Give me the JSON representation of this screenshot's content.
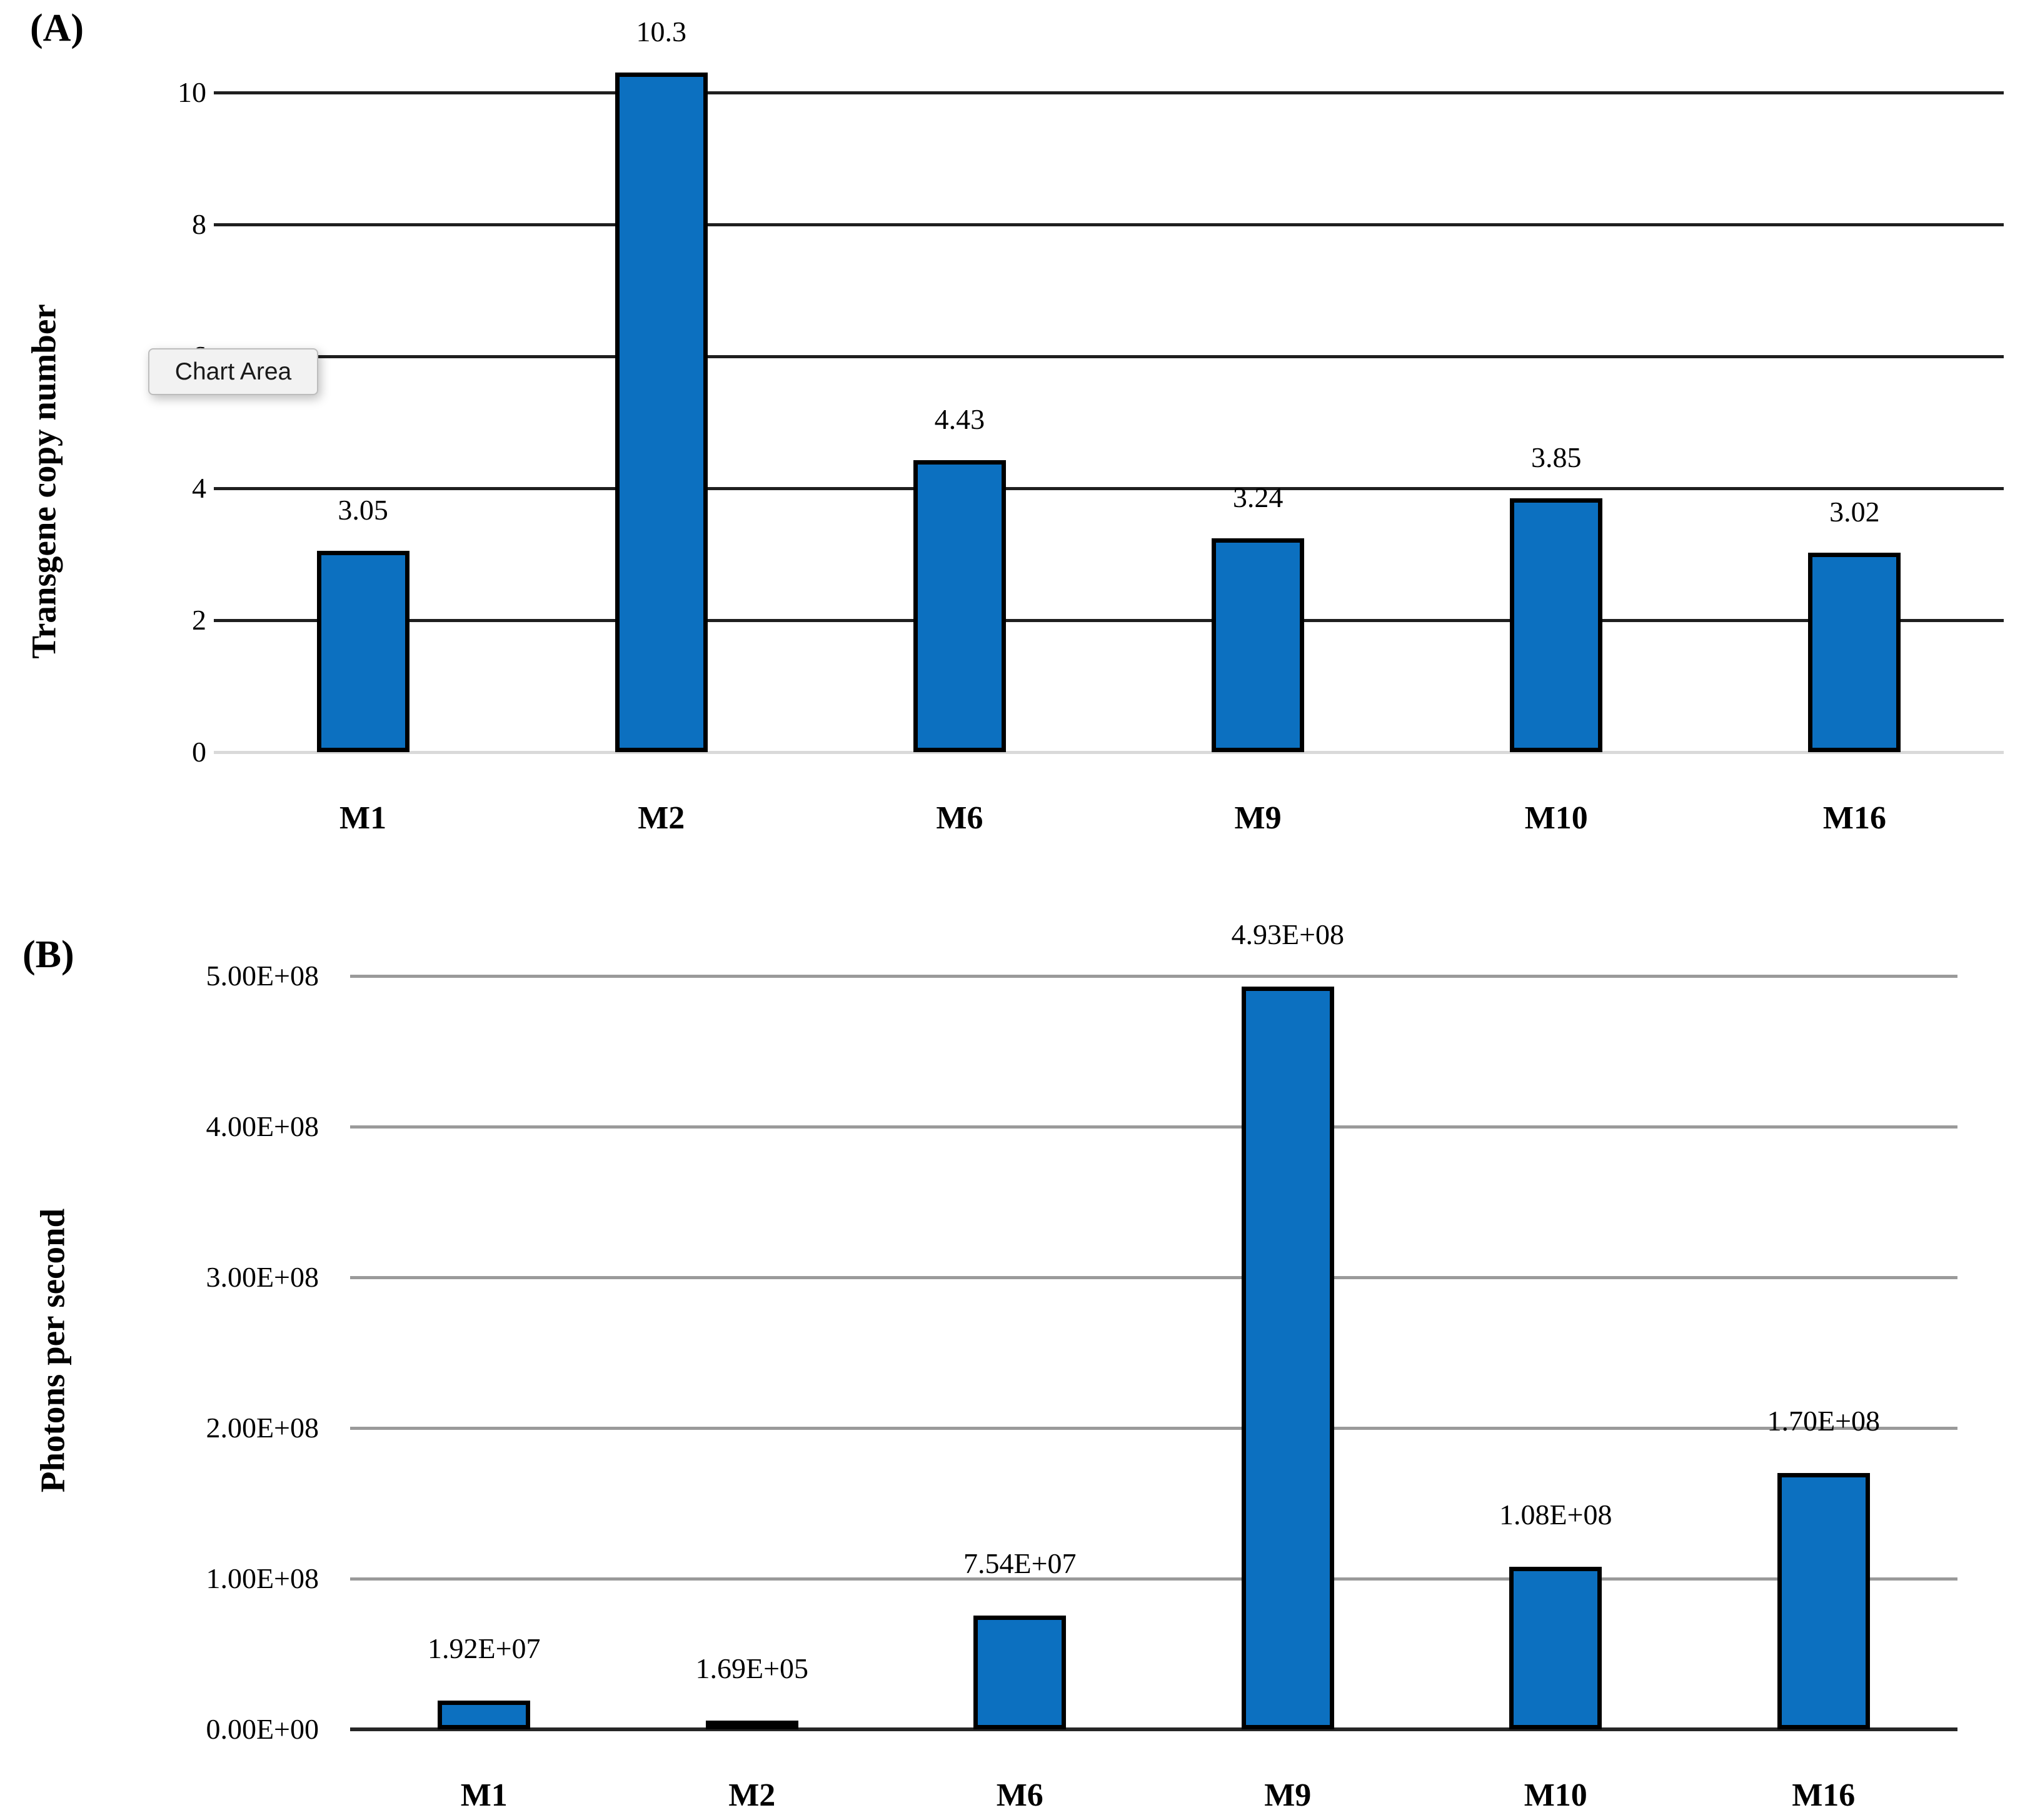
{
  "tooltip": {
    "text": "Chart Area"
  },
  "colors": {
    "bar_fill": "#0c70c0",
    "bar_border": "#000000",
    "chartA_grid": "#1f1f1f",
    "chartA_baseline": "#d9d9d9",
    "chartB_grid": "#9a9a9a",
    "chartB_baseline": "#262626"
  },
  "chart_data": [
    {
      "type": "bar",
      "panel": "(A)",
      "title": "",
      "ylabel": "Transgene copy number",
      "xlabel": "",
      "categories": [
        "M1",
        "M2",
        "M6",
        "M9",
        "M10",
        "M16"
      ],
      "values": [
        3.05,
        10.3,
        4.43,
        3.24,
        3.85,
        3.02
      ],
      "value_labels": [
        "3.05",
        "10.3",
        "4.43",
        "3.24",
        "3.85",
        "3.02"
      ],
      "ylim": [
        0,
        10
      ],
      "yticks": [
        "0",
        "2",
        "4",
        "6",
        "8",
        "10"
      ],
      "ytick_values": [
        0,
        2,
        4,
        6,
        8,
        10
      ],
      "grid": "on",
      "legend": "none",
      "annotation": "Chart Area tooltip over the 6 tick"
    },
    {
      "type": "bar",
      "panel": "(B)",
      "title": "",
      "ylabel": "Photons per second",
      "xlabel": "",
      "categories": [
        "M1",
        "M2",
        "M6",
        "M9",
        "M10",
        "M16"
      ],
      "values": [
        19200000,
        169000,
        75400000,
        493000000,
        108000000,
        170000000
      ],
      "value_labels": [
        "1.92E+07",
        "1.69E+05",
        "7.54E+07",
        "4.93E+08",
        "1.08E+08",
        "1.70E+08"
      ],
      "ylim": [
        0,
        500000000
      ],
      "yticks": [
        "0.00E+00",
        "1.00E+08",
        "2.00E+08",
        "3.00E+08",
        "4.00E+08",
        "5.00E+08"
      ],
      "ytick_values": [
        0,
        100000000,
        200000000,
        300000000,
        400000000,
        500000000
      ],
      "grid": "on",
      "legend": "none"
    }
  ]
}
